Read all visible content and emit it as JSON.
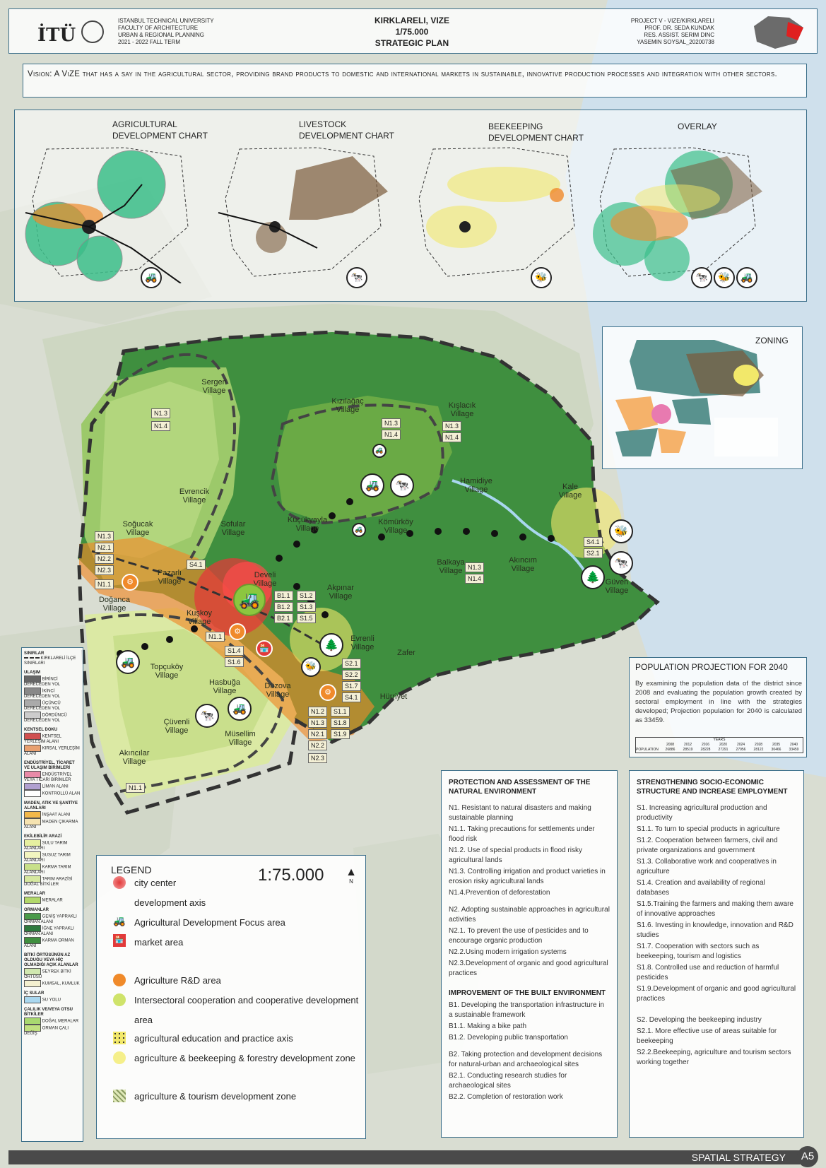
{
  "header": {
    "logo": "İTÜ",
    "institution": [
      "ISTANBUL TECHNICAL UNIVERSITY",
      "FACULTY OF ARCHITECTURE",
      "URBAN & REGIONAL PLANNING",
      "2021 - 2022 FALL TERM"
    ],
    "title": [
      "KIRKLARELI, VIZE",
      "1/75.000",
      "STRATEGIC PLAN"
    ],
    "project": [
      "PROJECT V - VIZE/KIRKLARELI",
      "PROF. DR. SEDA KUNDAK",
      "RES. ASSIST. SERIM DINC",
      "YASEMIN SOYSAL_20200738"
    ]
  },
  "vision": {
    "label": "Vision:",
    "text": "A ViZE that has a say in the agricultural sector, providing brand products to domestic and international markets in sustainable, innovative production processes and integration with other sectors."
  },
  "charts": [
    {
      "title": "AGRICULTURAL DEVELOPMENT CHART",
      "icon": "tractor-icon"
    },
    {
      "title": "LIVESTOCK DEVELOPMENT CHART",
      "icon": "cow-icon"
    },
    {
      "title": "BEEKEEPING DEVELOPMENT CHART",
      "icon": "bee-icon"
    },
    {
      "title": "OVERLAY",
      "icon": "all-icons"
    }
  ],
  "zoning": {
    "title": "ZONING"
  },
  "villages": [
    "Sergen Village",
    "Kızılağaç Village",
    "Kışlacık Village",
    "Hamidiye Village",
    "Kale Village",
    "Evrencik Village",
    "Soğucak Village",
    "Sofular Village",
    "Küçükyayla Village",
    "Kömürköy Village",
    "Pazarlı Village",
    "Develi Village",
    "Akpınar Village",
    "Balkaya Village",
    "Akıncım Village",
    "Güven Village",
    "Doğanca Village",
    "Kuşkoy Village",
    "Evrenli Village",
    "Zafer",
    "Topçuköy Village",
    "Hasbuğa Village",
    "Düzova Village",
    "Hürriyet",
    "Çüvenli Village",
    "Müsellim Village",
    "Akıncılar Village"
  ],
  "tags": [
    "N1.3",
    "N1.4",
    "N1.3",
    "N1.4",
    "N1.3",
    "N1.4",
    "N1.3",
    "N1.4",
    "N1.3",
    "N2.1",
    "N2.2",
    "N2.3",
    "N1.1",
    "S4.1",
    "B1.1",
    "B1.2",
    "B2.1",
    "S1.2",
    "S1.3",
    "S1.5",
    "N1.1",
    "S1.4",
    "S1.6",
    "S2.1",
    "S2.2",
    "S1.7",
    "S4.1",
    "N1.2",
    "N1.3",
    "N2.1",
    "N2.2",
    "N2.3",
    "S1.1",
    "S1.8",
    "S1.9",
    "S4.1",
    "S2.1",
    "N1.1"
  ],
  "population": {
    "title": "POPULATION PROJECTION FOR 2040",
    "text": "By examining the population data of the district since 2008 and evaluating the population growth created by sectoral employment in line with the strategies developed; Projection population for 2040 is calculated as 33459.",
    "table_title": "YEARS",
    "years": [
      "2008",
      "2012",
      "2016",
      "2020",
      "2024",
      "2028",
      "2035",
      "2040"
    ],
    "row_label": "POPULATION",
    "values": [
      "26886",
      "28519",
      "28228",
      "27291",
      "27956",
      "28122",
      "30466",
      "33459"
    ]
  },
  "side_legend": {
    "sections": [
      "SINIRLAR",
      "ULAŞIM",
      "KENTSEL DOKU",
      "ENDÜSTRİYEL, TİCARET VE ULAŞIM BİRİMLERİ",
      "MADEN, ATIK VE ŞANTİYE ALANLARI",
      "EKİLEBİLİR ARAZİ",
      "MERALAR",
      "ORMANLAR",
      "BİTKİ ÖRTÜSÜNÜN AZ OLDUĞU VEYA HİÇ OLMADIĞI AÇIK ALANLAR",
      "İÇ SULAR",
      "ÇALILIK VE/VEYA OTSU BİTKİLER"
    ],
    "items": [
      "KIRKLARELİ İLÇE SINIRLARI",
      "BİRİNCİ DERECEDEN YOL",
      "İKİNCİ DERECEDEN YOL",
      "ÜÇÜNCÜ DERECEDEN YOL",
      "DÖRDÜNCÜ DERECEDEN YOL",
      "KENTSEL YERLEŞİM ALANI",
      "KIRSAL YERLEŞİM ALANI",
      "ENDÜSTRİYEL VEYA TİCARİ BİRİMLER",
      "LİMAN ALANI",
      "KONTROLLÜ ALAN",
      "İNŞAAT ALANI",
      "MADEN ÇIKARMA ALANI",
      "SULU TARIM ALANLARI",
      "SUSUZ TARIM ALANLARI",
      "KARMA TARIM ALANLARI",
      "TARIM ARAZİSİ DOĞAL BİTKİLER",
      "MERALAR",
      "GENİŞ YAPRAKLI ORMAN ALANI",
      "İĞNE YAPRAKLI ORMAN ALANI",
      "KARMA ORMAN ALANI",
      "SEYREK BİTKİ ÖRTÜSÜ",
      "KUMSAL, KUMLUK",
      "SU YOLU",
      "DOĞAL MERALAR",
      "ORMAN ÇALI DEĞİŞ"
    ]
  },
  "legend": {
    "title": "LEGEND",
    "scale": "1:75.000",
    "north": "N",
    "items": [
      "city center",
      "development axis",
      "Agricultural Development Focus area",
      "market area",
      "Agriculture R&D area",
      "Intersectoral cooperation and cooperative development",
      "area",
      "agricultural education and practice axis",
      "agriculture & beekeeping & forestry development zone",
      "agriculture & tourism development zone"
    ]
  },
  "protection": {
    "title": "PROTECTION AND ASSESSMENT OF THE NATURAL ENVIRONMENT",
    "lines": [
      "N1. Resistant to natural disasters and making sustainable planning",
      "N1.1. Taking precautions for settlements under flood risk",
      "N1.2. Use of special products in flood risky agricultural lands",
      "N1.3. Controlling irrigation and product varieties in erosion risky agricultural lands",
      "N1.4.Prevention of deforestation",
      "N2. Adopting sustainable approaches in agricultural activities",
      "N2.1. To prevent the use of pesticides and to encourage organic production",
      "N2.2.Using modern irrigation systems",
      "N2.3.Development of organic and good agricultural practices"
    ]
  },
  "built": {
    "title": "IMPROVEMENT OF THE BUILT ENVIRONMENT",
    "lines": [
      "B1. Developing the transportation infrastructure in a sustainable framework",
      "B1.1. Making a bike path",
      "B1.2. Developing public transportation",
      "B2. Taking protection and development decisions for natural-urban and archaeological sites",
      "B2.1. Conducting research studies for archaeological sites",
      "B2.2. Completion of restoration work"
    ]
  },
  "socio": {
    "title": "STRENGTHENING SOCIO-ECONOMIC STRUCTURE AND INCREASE EMPLOYMENT",
    "lines": [
      "S1. Increasing agricultural production and productivity",
      "S1.1. To turn to special products in agriculture",
      "S1.2. Cooperation between farmers, civil and private organizations and government",
      "S1.3. Collaborative work and cooperatives in agriculture",
      "S1.4. Creation and availability of regional databases",
      "S1.5.Training the farmers and making them aware of innovative approaches",
      "S1.6. Investing in knowledge, innovation and R&D studies",
      "S1.7. Cooperation with sectors such as beekeeping, tourism and logistics",
      "S1.8. Controlled use and reduction of harmful pesticides",
      "S1.9.Development of organic and good agricultural practices",
      "S2. Developing the beekeeping industry",
      "S2.1. More effective use of areas suitable for beekeeping",
      "S2.2.Beekeeping, agriculture and tourism sectors working together"
    ]
  },
  "footer": {
    "label": "SPATIAL STRATEGY",
    "page": "A5"
  },
  "colors": {
    "forest_dark": "#3f8f3f",
    "forest_mid": "#6aaa45",
    "agri_light": "#c9df8c",
    "orange_zone": "#f08a2a",
    "red_center": "#e23a3a",
    "frame": "#3c6f8a",
    "footer": "#4a4a4a"
  }
}
